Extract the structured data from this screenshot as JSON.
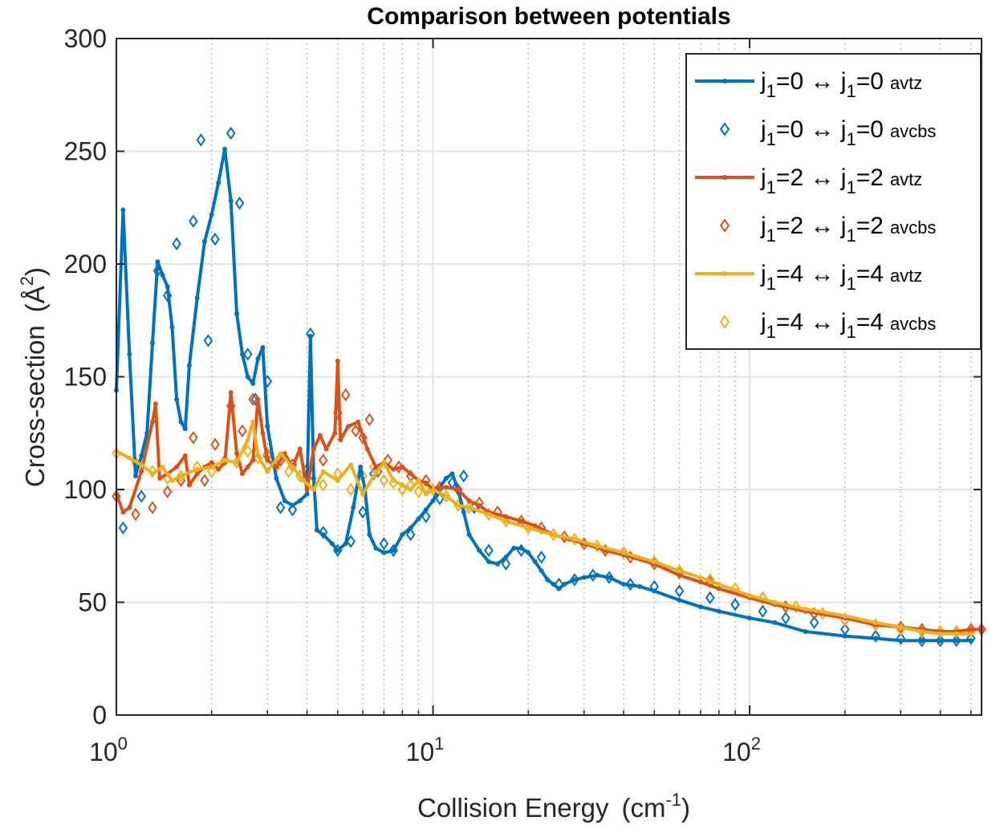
{
  "chart_data": {
    "type": "line",
    "title": "Comparison between potentials",
    "xlabel": "Collision Energy",
    "xlabel_unit": "(cm",
    "xlabel_unit_exp": "-1",
    "xlabel_unit_close": ")",
    "ylabel": "Cross-section",
    "ylabel_unit": "(Å",
    "ylabel_unit_exp": "2",
    "ylabel_unit_close": ")",
    "xscale": "log",
    "xlim": [
      1,
      540
    ],
    "ylim": [
      0,
      300
    ],
    "grid": true,
    "xticks": [
      {
        "base": "10",
        "exp": "0",
        "value": 1
      },
      {
        "base": "10",
        "exp": "1",
        "value": 10
      },
      {
        "base": "10",
        "exp": "2",
        "value": 100
      }
    ],
    "yticks": [
      "0",
      "50",
      "100",
      "150",
      "200",
      "250",
      "300"
    ],
    "legend_position": "top-right",
    "series": [
      {
        "key": "avtz0",
        "style": "line",
        "color": "#0072BD",
        "label": {
          "j": "j",
          "sub": "1",
          "rel": "=0 ↔ j",
          "sub2": "1",
          "rel2": "=0",
          "tag": "avtz"
        },
        "x": [
          1.0,
          1.05,
          1.1,
          1.15,
          1.2,
          1.25,
          1.3,
          1.35,
          1.4,
          1.45,
          1.5,
          1.55,
          1.6,
          1.65,
          1.7,
          1.8,
          1.9,
          2.0,
          2.1,
          2.2,
          2.3,
          2.4,
          2.5,
          2.6,
          2.7,
          2.8,
          2.9,
          3.0,
          3.2,
          3.4,
          3.6,
          3.8,
          4.0,
          4.1,
          4.2,
          4.3,
          4.5,
          4.8,
          5.0,
          5.3,
          5.6,
          5.9,
          6.1,
          6.3,
          6.6,
          7.0,
          7.5,
          8.0,
          8.5,
          9.0,
          9.5,
          10.0,
          10.5,
          11.0,
          11.5,
          12.0,
          12.5,
          13.0,
          14.0,
          15.0,
          16.0,
          17.0,
          18.0,
          19.0,
          20.0,
          21.0,
          22.0,
          23.0,
          24.0,
          25.0,
          26.0,
          28.0,
          30.0,
          33.0,
          36.0,
          40.0,
          45.0,
          50.0,
          60.0,
          70.0,
          80.0,
          100.0,
          120.0,
          150.0,
          200.0,
          250.0,
          300.0,
          350.0,
          400.0,
          450.0,
          500.0
        ],
        "y": [
          144,
          224,
          160,
          106,
          115,
          125,
          165,
          201,
          195,
          190,
          172,
          140,
          130,
          127,
          155,
          185,
          210,
          222,
          236,
          251,
          228,
          178,
          160,
          150,
          147,
          158,
          163,
          128,
          105,
          95,
          93,
          95,
          98,
          168,
          105,
          82,
          80,
          76,
          73,
          76,
          92,
          110,
          100,
          80,
          74,
          72,
          73,
          80,
          83,
          87,
          91,
          95,
          101,
          105,
          107,
          100,
          90,
          80,
          73,
          68,
          67,
          70,
          74,
          74,
          72,
          68,
          64,
          60,
          58,
          56,
          58,
          60,
          61,
          62,
          61,
          58,
          57,
          55,
          51,
          48,
          46,
          43,
          41,
          37,
          35,
          34,
          33,
          33,
          33,
          33,
          33
        ]
      },
      {
        "key": "avcbs0",
        "style": "marker",
        "color": "#0072BD",
        "label": {
          "j": "j",
          "sub": "1",
          "rel": "=0 ↔ j",
          "sub2": "1",
          "rel2": "=0",
          "tag": "avcbs"
        },
        "x": [
          1.05,
          1.2,
          1.35,
          1.45,
          1.55,
          1.75,
          1.85,
          1.95,
          2.05,
          2.3,
          2.45,
          2.6,
          2.75,
          3.0,
          3.3,
          3.6,
          4.1,
          4.5,
          5.0,
          5.5,
          6.0,
          6.5,
          7.0,
          7.5,
          8.5,
          9.5,
          10.5,
          11.5,
          12.5,
          13.5,
          15.0,
          17.0,
          19.0,
          22.0,
          25.0,
          28.0,
          32.0,
          36.0,
          42.0,
          50.0,
          60.0,
          75.0,
          90.0,
          110.0,
          130.0,
          160.0,
          200.0,
          250.0,
          300.0,
          350.0,
          400.0,
          450.0,
          500.0
        ],
        "y": [
          83,
          97,
          197,
          186,
          209,
          219,
          255,
          166,
          211,
          258,
          227,
          160,
          140,
          148,
          92,
          91,
          169,
          81,
          73,
          77,
          90,
          107,
          76,
          73,
          80,
          88,
          96,
          103,
          106,
          92,
          73,
          67,
          73,
          70,
          58,
          60,
          62,
          61,
          58,
          57,
          55,
          52,
          49,
          46,
          43,
          41,
          38,
          35,
          34,
          33,
          33,
          33,
          34
        ]
      },
      {
        "key": "avtz2",
        "style": "line",
        "color": "#D95319",
        "label": {
          "j": "j",
          "sub": "1",
          "rel": "=2 ↔ j",
          "sub2": "1",
          "rel2": "=2",
          "tag": "avtz"
        },
        "x": [
          1.0,
          1.05,
          1.1,
          1.2,
          1.3,
          1.33,
          1.37,
          1.45,
          1.55,
          1.65,
          1.7,
          1.8,
          1.9,
          2.0,
          2.1,
          2.2,
          2.3,
          2.4,
          2.5,
          2.6,
          2.7,
          2.8,
          2.9,
          3.0,
          3.2,
          3.4,
          3.6,
          3.8,
          4.0,
          4.2,
          4.4,
          4.6,
          4.9,
          5.0,
          5.1,
          5.4,
          5.8,
          6.2,
          6.6,
          7.0,
          7.5,
          8.0,
          8.5,
          9.0,
          9.5,
          10.0,
          10.5,
          11.0,
          12.0,
          13.0,
          14.0,
          15.0,
          17.0,
          19.0,
          21.0,
          24.0,
          27.0,
          30.0,
          35.0,
          40.0,
          50.0,
          60.0,
          70.0,
          80.0,
          100.0,
          120.0,
          150.0,
          200.0,
          250.0,
          300.0,
          350.0,
          400.0,
          450.0,
          500.0,
          540.0
        ],
        "y": [
          98,
          90,
          92,
          108,
          130,
          138,
          105,
          107,
          110,
          115,
          102,
          107,
          110,
          112,
          109,
          112,
          143,
          116,
          107,
          110,
          113,
          140,
          125,
          113,
          110,
          116,
          110,
          118,
          100,
          118,
          124,
          118,
          125,
          157,
          122,
          128,
          130,
          118,
          110,
          112,
          109,
          110,
          107,
          104,
          103,
          100,
          101,
          101,
          100,
          95,
          93,
          90,
          88,
          86,
          84,
          80,
          78,
          76,
          73,
          71,
          67,
          62,
          59,
          56,
          52,
          49,
          46,
          43,
          40,
          39,
          38,
          37,
          37,
          38,
          38
        ]
      },
      {
        "key": "avcbs2",
        "style": "marker",
        "color": "#D95319",
        "label": {
          "j": "j",
          "sub": "1",
          "rel": "=2 ↔ j",
          "sub2": "1",
          "rel2": "=2",
          "tag": "avcbs"
        },
        "x": [
          1.0,
          1.15,
          1.3,
          1.45,
          1.6,
          1.75,
          1.9,
          2.05,
          2.3,
          2.5,
          2.7,
          3.0,
          3.3,
          3.6,
          4.0,
          4.5,
          5.0,
          5.3,
          5.7,
          6.0,
          6.3,
          6.7,
          7.2,
          7.8,
          8.5,
          9.5,
          10.5,
          12.0,
          14.0,
          16.0,
          19.0,
          22.0,
          26.0,
          30.0,
          35.0,
          42.0,
          50.0,
          60.0,
          75.0,
          90.0,
          110.0,
          130.0,
          160.0,
          200.0,
          250.0,
          300.0,
          350.0,
          400.0,
          450.0,
          500.0,
          540.0
        ],
        "y": [
          97,
          89,
          92,
          99,
          104,
          123,
          104,
          120,
          137,
          126,
          140,
          115,
          113,
          111,
          109,
          113,
          134,
          142,
          126,
          123,
          131,
          108,
          113,
          110,
          106,
          104,
          101,
          100,
          94,
          90,
          86,
          83,
          79,
          76,
          73,
          70,
          67,
          63,
          59,
          56,
          52,
          48,
          45,
          42,
          40,
          39,
          38,
          37,
          37,
          38,
          38
        ]
      },
      {
        "key": "avtz4",
        "style": "line",
        "color": "#EDB120",
        "label": {
          "j": "j",
          "sub": "1",
          "rel": "=4 ↔ j",
          "sub2": "1",
          "rel2": "=4",
          "tag": "avtz"
        },
        "x": [
          1.0,
          1.1,
          1.2,
          1.3,
          1.4,
          1.5,
          1.6,
          1.8,
          2.0,
          2.2,
          2.4,
          2.6,
          2.7,
          2.8,
          3.0,
          3.3,
          3.6,
          3.9,
          4.2,
          4.5,
          5.0,
          5.5,
          6.0,
          6.5,
          7.0,
          7.5,
          8.0,
          8.5,
          9.0,
          9.5,
          10.0,
          11.0,
          12.0,
          13.0,
          15.0,
          17.0,
          20.0,
          24.0,
          28.0,
          33.0,
          40.0,
          50.0,
          60.0,
          70.0,
          80.0,
          100.0,
          120.0,
          150.0,
          200.0,
          250.0,
          300.0,
          350.0,
          400.0,
          450.0,
          500.0
        ],
        "y": [
          117,
          114,
          111,
          107,
          110,
          104,
          106,
          109,
          110,
          113,
          112,
          122,
          130,
          115,
          108,
          116,
          110,
          104,
          100,
          108,
          104,
          111,
          98,
          106,
          112,
          104,
          102,
          100,
          104,
          98,
          100,
          97,
          93,
          92,
          89,
          86,
          83,
          80,
          78,
          75,
          72,
          68,
          64,
          61,
          58,
          53,
          50,
          47,
          44,
          41,
          39,
          37,
          36,
          36,
          36
        ]
      },
      {
        "key": "avcbs4",
        "style": "marker",
        "color": "#EDB120",
        "label": {
          "j": "j",
          "sub": "1",
          "rel": "=4 ↔ j",
          "sub2": "1",
          "rel2": "=4",
          "tag": "avcbs"
        },
        "x": [
          1.0,
          1.15,
          1.3,
          1.45,
          1.6,
          1.8,
          2.0,
          2.2,
          2.4,
          2.6,
          2.8,
          3.0,
          3.2,
          3.5,
          3.8,
          4.1,
          4.5,
          5.0,
          5.5,
          6.0,
          6.5,
          7.0,
          7.5,
          8.0,
          8.5,
          9.0,
          9.5,
          10.0,
          11.0,
          12.0,
          13.0,
          15.0,
          17.0,
          20.0,
          24.0,
          28.0,
          33.0,
          40.0,
          50.0,
          60.0,
          75.0,
          90.0,
          110.0,
          140.0,
          170.0,
          200.0,
          250.0,
          300.0,
          350.0,
          400.0,
          450.0,
          500.0
        ],
        "y": [
          116,
          112,
          108,
          105,
          106,
          110,
          108,
          113,
          112,
          117,
          114,
          116,
          110,
          108,
          106,
          103,
          102,
          107,
          100,
          106,
          110,
          104,
          103,
          100,
          102,
          99,
          101,
          100,
          97,
          93,
          92,
          89,
          86,
          83,
          80,
          78,
          75,
          72,
          68,
          64,
          60,
          56,
          52,
          48,
          45,
          42,
          40,
          38,
          37,
          37,
          37,
          37
        ]
      }
    ]
  }
}
